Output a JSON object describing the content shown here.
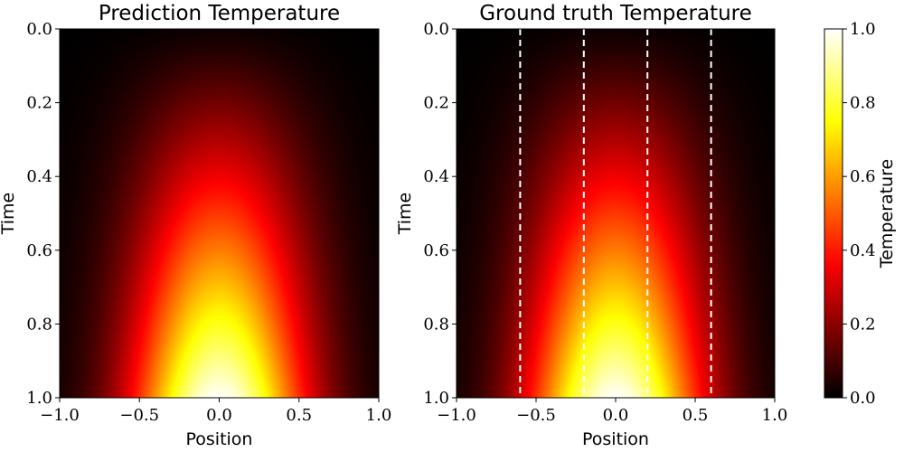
{
  "chart_data": [
    {
      "type": "heatmap",
      "title": "Prediction Temperature",
      "xlabel": "Position",
      "ylabel": "Time",
      "xlim": [
        -1.0,
        1.0
      ],
      "ylim": [
        0.0,
        1.0
      ],
      "y_inverted": true,
      "xticks": [
        "−1.0",
        "−0.5",
        "0.0",
        "0.5",
        "1.0"
      ],
      "xtick_values": [
        -1.0,
        -0.5,
        0.0,
        0.5,
        1.0
      ],
      "yticks": [
        "0.0",
        "0.2",
        "0.4",
        "0.6",
        "0.8",
        "1.0"
      ],
      "ytick_values": [
        0.0,
        0.2,
        0.4,
        0.6,
        0.8,
        1.0
      ],
      "colormap": "hot",
      "field_description": "peak at x=0, intensity grows with time",
      "peak_value": 1.0,
      "dashed_lines_x": []
    },
    {
      "type": "heatmap",
      "title": "Ground truth Temperature",
      "xlabel": "Position",
      "ylabel": "Time",
      "xlim": [
        -1.0,
        1.0
      ],
      "ylim": [
        0.0,
        1.0
      ],
      "y_inverted": true,
      "xticks": [
        "−1.0",
        "−0.5",
        "0.0",
        "0.5",
        "1.0"
      ],
      "xtick_values": [
        -1.0,
        -0.5,
        0.0,
        0.5,
        1.0
      ],
      "yticks": [
        "0.0",
        "0.2",
        "0.4",
        "0.6",
        "0.8",
        "1.0"
      ],
      "ytick_values": [
        0.0,
        0.2,
        0.4,
        0.6,
        0.8,
        1.0
      ],
      "colormap": "hot",
      "field_description": "peak at x=0, intensity grows with time",
      "peak_value": 1.0,
      "dashed_lines_x": [
        -0.6,
        -0.2,
        0.2,
        0.6
      ]
    }
  ],
  "colorbar": {
    "label": "Temperature",
    "range": [
      0.0,
      1.0
    ],
    "ticks": [
      "0.0",
      "0.2",
      "0.4",
      "0.6",
      "0.8",
      "1.0"
    ],
    "tick_values": [
      0.0,
      0.2,
      0.4,
      0.6,
      0.8,
      1.0
    ]
  },
  "colors": {
    "dashed_line": "#ffffff",
    "frame": "#000000"
  }
}
